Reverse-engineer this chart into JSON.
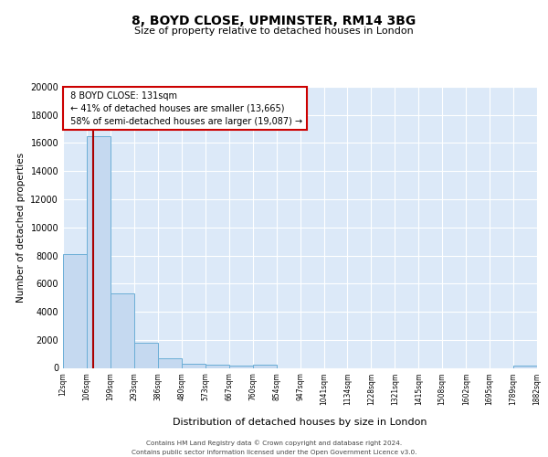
{
  "title1": "8, BOYD CLOSE, UPMINSTER, RM14 3BG",
  "title2": "Size of property relative to detached houses in London",
  "xlabel": "Distribution of detached houses by size in London",
  "ylabel": "Number of detached properties",
  "bar_color": "#c5d9f0",
  "bar_edge_color": "#6baed6",
  "bg_color": "#dce9f8",
  "grid_color": "#ffffff",
  "red_line_color": "#aa0000",
  "property_size": 131,
  "property_label": "8 BOYD CLOSE: 131sqm",
  "pct_smaller": 41,
  "n_smaller": 13665,
  "pct_larger_semi": 58,
  "n_larger_semi": 19087,
  "bin_edges": [
    12,
    106,
    199,
    293,
    386,
    480,
    573,
    667,
    760,
    854,
    947,
    1041,
    1134,
    1228,
    1321,
    1415,
    1508,
    1602,
    1695,
    1789,
    1882
  ],
  "bin_heights": [
    8100,
    16500,
    5300,
    1800,
    700,
    300,
    220,
    150,
    200,
    0,
    0,
    0,
    0,
    0,
    0,
    0,
    0,
    0,
    0,
    150
  ],
  "tick_labels": [
    "12sqm",
    "106sqm",
    "199sqm",
    "293sqm",
    "386sqm",
    "480sqm",
    "573sqm",
    "667sqm",
    "760sqm",
    "854sqm",
    "947sqm",
    "1041sqm",
    "1134sqm",
    "1228sqm",
    "1321sqm",
    "1415sqm",
    "1508sqm",
    "1602sqm",
    "1695sqm",
    "1789sqm",
    "1882sqm"
  ],
  "ylim": [
    0,
    20000
  ],
  "yticks": [
    0,
    2000,
    4000,
    6000,
    8000,
    10000,
    12000,
    14000,
    16000,
    18000,
    20000
  ],
  "footer1": "Contains HM Land Registry data © Crown copyright and database right 2024.",
  "footer2": "Contains public sector information licensed under the Open Government Licence v3.0."
}
